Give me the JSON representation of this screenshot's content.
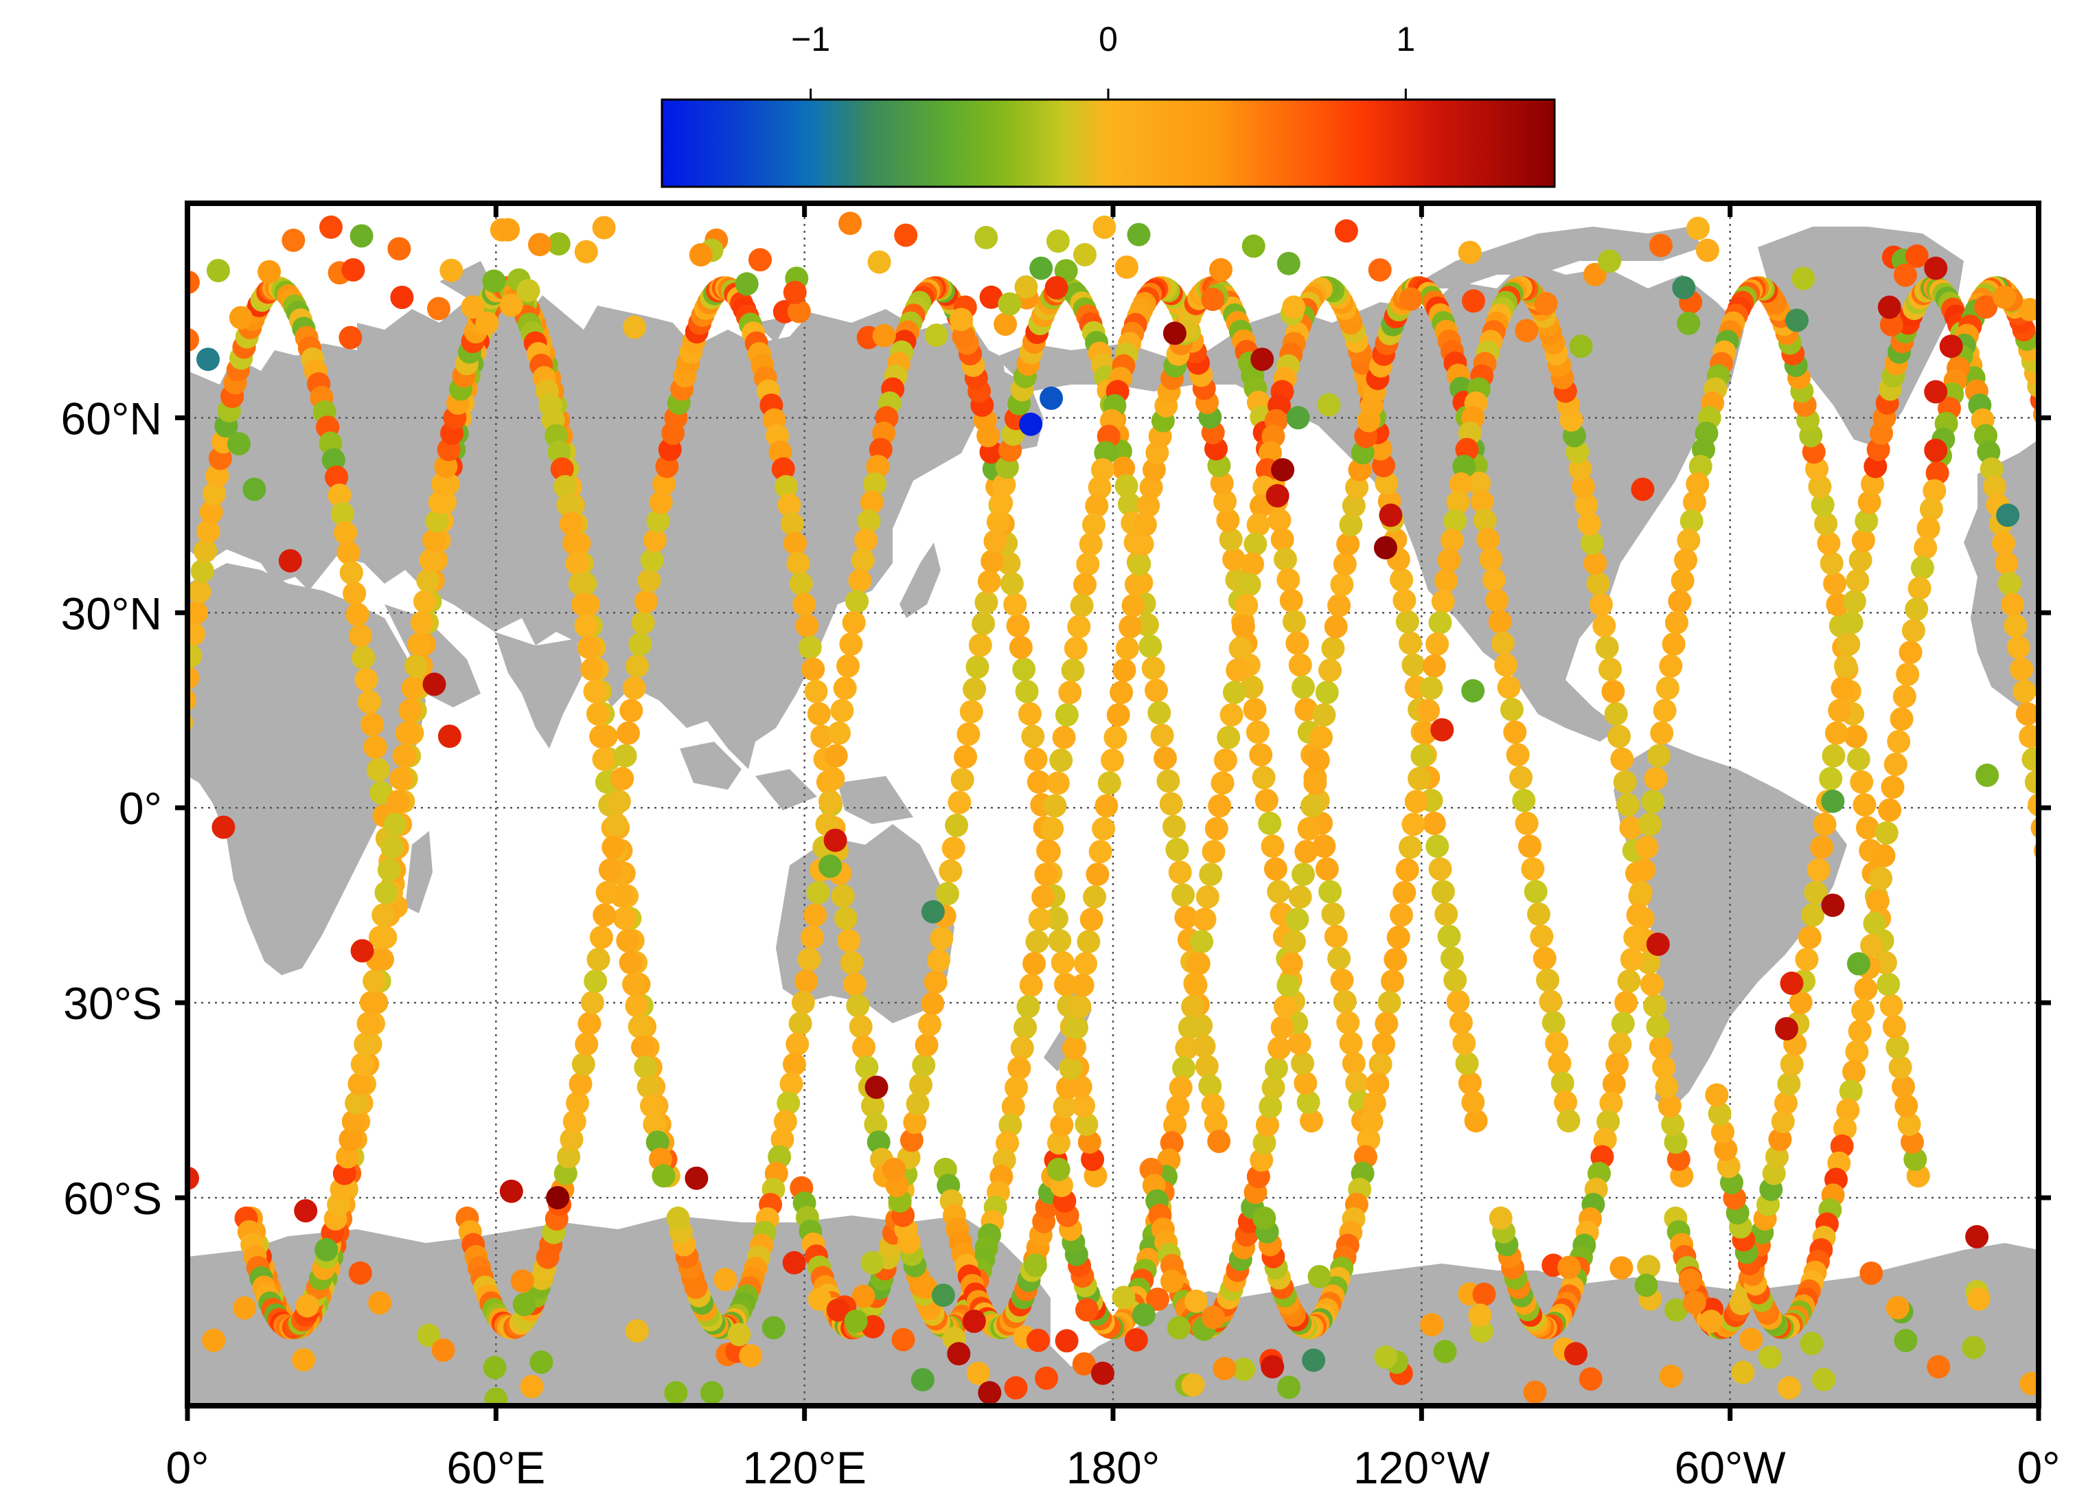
{
  "colorbar": {
    "ticks": [
      {
        "value": -1,
        "label": "−1"
      },
      {
        "value": 0,
        "label": "0"
      },
      {
        "value": 1,
        "label": "1"
      }
    ],
    "range": [
      -1.5,
      1.5
    ],
    "stops": [
      {
        "value": -1.5,
        "color": "#0018e8"
      },
      {
        "value": -1.25,
        "color": "#0a3fd0"
      },
      {
        "value": -1.0,
        "color": "#0d73b8"
      },
      {
        "value": -0.8,
        "color": "#3a8a5c"
      },
      {
        "value": -0.55,
        "color": "#5caa30"
      },
      {
        "value": -0.35,
        "color": "#86b81a"
      },
      {
        "value": -0.15,
        "color": "#c8c820"
      },
      {
        "value": 0.0,
        "color": "#fbb31d"
      },
      {
        "value": 0.35,
        "color": "#fd9a10"
      },
      {
        "value": 0.6,
        "color": "#fe6a0a"
      },
      {
        "value": 0.85,
        "color": "#fc3a03"
      },
      {
        "value": 1.1,
        "color": "#d01508"
      },
      {
        "value": 1.5,
        "color": "#8a0000"
      }
    ]
  },
  "map": {
    "projection": "plate-carree",
    "center_longitude": 180,
    "lon_ticks": [
      {
        "lon": 0,
        "label": "0°"
      },
      {
        "lon": 60,
        "label": "60°E"
      },
      {
        "lon": 120,
        "label": "120°E"
      },
      {
        "lon": 180,
        "label": "180°"
      },
      {
        "lon": 240,
        "label": "120°W"
      },
      {
        "lon": 300,
        "label": "60°W"
      },
      {
        "lon": 360,
        "label": "0°"
      }
    ],
    "lat_ticks": [
      {
        "lat": 60,
        "label": "60°N"
      },
      {
        "lat": 30,
        "label": "30°N"
      },
      {
        "lat": 0,
        "label": "0°"
      },
      {
        "lat": -30,
        "label": "30°S"
      },
      {
        "lat": -60,
        "label": "60°S"
      }
    ],
    "lat_range": [
      -92,
      93
    ],
    "gridlines": "dotted",
    "land_color": "#b0b0b0",
    "ocean_color": "#ffffff"
  },
  "chart_data": {
    "type": "scatter",
    "xlabel": "",
    "ylabel": "",
    "x_range": [
      0,
      360
    ],
    "y_range": [
      -92,
      93
    ],
    "color_range": [
      -1.5,
      1.5
    ],
    "tracks": [
      {
        "lon0": 0,
        "lat0": 20,
        "dir": -1
      },
      {
        "lon0": 0,
        "lat0": 20,
        "dir": 1
      },
      {
        "lon0": 53,
        "lat0": 60,
        "dir": -1
      },
      {
        "lon0": 52,
        "lat0": 60,
        "dir": 1
      },
      {
        "lon0": 95,
        "lat0": 60,
        "dir": 1
      },
      {
        "lon0": 136,
        "lat0": 60,
        "dir": -1
      },
      {
        "lon0": 160,
        "lat0": 55,
        "dir": 1
      },
      {
        "lon0": 178,
        "lat0": 52,
        "dir": -1
      },
      {
        "lon0": 188,
        "lat0": 52,
        "dir": 1
      },
      {
        "lon0": 210,
        "lat0": 52,
        "dir": -1
      },
      {
        "lon0": 228,
        "lat0": 52,
        "dir": 1
      },
      {
        "lon0": 250,
        "lat0": 60,
        "dir": -1
      },
      {
        "lon0": 296,
        "lat0": 60,
        "dir": -1
      },
      {
        "lon0": 330,
        "lat0": 60,
        "dir": 1
      },
      {
        "lon0": 338,
        "lat0": 40,
        "dir": -1
      }
    ],
    "anomalies": [
      {
        "lon": 164,
        "lat": 59,
        "value": -1.45
      },
      {
        "lon": 168,
        "lat": 63,
        "value": -1.15
      },
      {
        "lon": 4,
        "lat": 69,
        "value": -0.9
      },
      {
        "lon": 354,
        "lat": 45,
        "value": -0.85
      },
      {
        "lon": 313,
        "lat": 75,
        "value": -0.75
      },
      {
        "lon": 291,
        "lat": 80,
        "value": -0.8
      },
      {
        "lon": 145,
        "lat": -16,
        "value": -0.8
      },
      {
        "lon": 216,
        "lat": 60,
        "value": -0.6
      },
      {
        "lon": 27,
        "lat": -68,
        "value": -0.5
      },
      {
        "lon": 219,
        "lat": -85,
        "value": -0.8
      },
      {
        "lon": 147,
        "lat": -75,
        "value": -0.7
      },
      {
        "lon": 10,
        "lat": 56,
        "value": -0.45
      },
      {
        "lon": 125,
        "lat": -9,
        "value": -0.5
      },
      {
        "lon": 325,
        "lat": -24,
        "value": -0.5
      },
      {
        "lon": 60,
        "lat": -91,
        "value": -0.3
      },
      {
        "lon": 13,
        "lat": 49,
        "value": -0.5
      },
      {
        "lon": 222,
        "lat": 62,
        "value": -0.2
      },
      {
        "lon": 250,
        "lat": 18,
        "value": -0.5
      },
      {
        "lon": 320,
        "lat": 1,
        "value": -0.6
      },
      {
        "lon": 350,
        "lat": 5,
        "value": -0.4
      },
      {
        "lon": 143,
        "lat": -88,
        "value": -0.6
      },
      {
        "lon": 186,
        "lat": -78,
        "value": -0.5
      },
      {
        "lon": 166,
        "lat": 83,
        "value": -0.55
      },
      {
        "lon": 271,
        "lat": 71,
        "value": -0.3
      },
      {
        "lon": 95,
        "lat": -90,
        "value": -0.35
      },
      {
        "lon": 102,
        "lat": -90,
        "value": -0.4
      },
      {
        "lon": 114,
        "lat": -80,
        "value": -0.45
      },
      {
        "lon": 130,
        "lat": -79,
        "value": -0.35
      },
      {
        "lon": 48,
        "lat": 19,
        "value": 1.2
      },
      {
        "lon": 51,
        "lat": 11,
        "value": 1.0
      },
      {
        "lon": 134,
        "lat": -43,
        "value": 1.35
      },
      {
        "lon": 126,
        "lat": -5,
        "value": 1.1
      },
      {
        "lon": 20,
        "lat": 38,
        "value": 1.05
      },
      {
        "lon": 213,
        "lat": 52,
        "value": 1.4
      },
      {
        "lon": 212,
        "lat": 48,
        "value": 1.15
      },
      {
        "lon": 233,
        "lat": 40,
        "value": 1.45
      },
      {
        "lon": 234,
        "lat": 45,
        "value": 1.15
      },
      {
        "lon": 192,
        "lat": 73,
        "value": 1.4
      },
      {
        "lon": 209,
        "lat": 69,
        "value": 1.3
      },
      {
        "lon": 320,
        "lat": -15,
        "value": 1.3
      },
      {
        "lon": 72,
        "lat": -60,
        "value": 1.5
      },
      {
        "lon": 63,
        "lat": -59,
        "value": 1.2
      },
      {
        "lon": 23,
        "lat": -62,
        "value": 1.1
      },
      {
        "lon": 99,
        "lat": -57,
        "value": 1.3
      },
      {
        "lon": 348,
        "lat": -66,
        "value": 1.2
      },
      {
        "lon": 156,
        "lat": -90,
        "value": 1.3
      },
      {
        "lon": 150,
        "lat": -84,
        "value": 1.25
      },
      {
        "lon": 178,
        "lat": -87,
        "value": 1.2
      },
      {
        "lon": 311,
        "lat": -34,
        "value": 1.2
      },
      {
        "lon": 312,
        "lat": -27,
        "value": 1.0
      },
      {
        "lon": 343,
        "lat": 71,
        "value": 1.1
      },
      {
        "lon": 340,
        "lat": 64,
        "value": 1.05
      },
      {
        "lon": 340,
        "lat": 83,
        "value": 1.15
      },
      {
        "lon": 331,
        "lat": 77,
        "value": 1.2
      },
      {
        "lon": 340,
        "lat": 55,
        "value": 0.95
      },
      {
        "lon": 283,
        "lat": 49,
        "value": 0.9
      },
      {
        "lon": 0,
        "lat": -57,
        "value": 1.0
      },
      {
        "lon": 118,
        "lat": -70,
        "value": 0.95
      },
      {
        "lon": 34,
        "lat": -22,
        "value": 1.0
      },
      {
        "lon": 169,
        "lat": 80,
        "value": 0.9
      },
      {
        "lon": 7,
        "lat": -3,
        "value": 1.0
      },
      {
        "lon": 244,
        "lat": 12,
        "value": 1.0
      },
      {
        "lon": 286,
        "lat": -21,
        "value": 1.15
      },
      {
        "lon": 270,
        "lat": -84,
        "value": 1.0
      },
      {
        "lon": 153,
        "lat": -79,
        "value": 1.1
      },
      {
        "lon": 211,
        "lat": -86,
        "value": 1.1
      },
      {
        "lon": 171,
        "lat": -82,
        "value": 0.9
      }
    ]
  }
}
